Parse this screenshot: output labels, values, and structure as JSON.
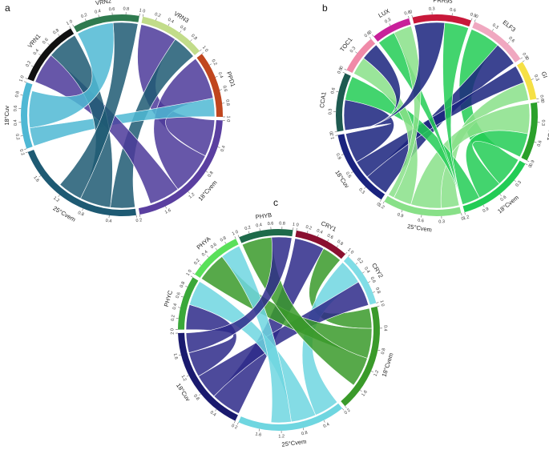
{
  "chart_data": [
    {
      "type": "chord",
      "panel": "a",
      "segments": [
        {
          "name": "VRN3",
          "color": "#c2dc8a",
          "ticks": [
            "0",
            "0.2",
            "0.4",
            "0.6",
            "0.8",
            "1"
          ]
        },
        {
          "name": "PPD1",
          "color": "#c0461e",
          "ticks": [
            "0",
            "0.2",
            "0.4",
            "0.6",
            "0.8",
            "1"
          ]
        },
        {
          "name": "18°Cvem",
          "color": "#5a3fa0",
          "ticks": [
            "0",
            "0.4",
            "0.8",
            "1.2",
            "1.6",
            "2"
          ]
        },
        {
          "name": "25°Cvem",
          "color": "#1e5a73",
          "ticks": [
            "0",
            "0.4",
            "0.8",
            "1.2",
            "1.6",
            "2"
          ]
        },
        {
          "name": "18°Cuv",
          "color": "#4fb8d4",
          "ticks": [
            "0",
            "0.2",
            "0.4",
            "0.6",
            "0.8",
            "1"
          ]
        },
        {
          "name": "VRN1",
          "color": "#111111",
          "ticks": [
            "0",
            "0.2",
            "0.4",
            "0.6",
            "0.8",
            "1"
          ]
        },
        {
          "name": "VRN2",
          "color": "#2f7a4f",
          "ticks": [
            "0",
            "0.2",
            "0.4",
            "0.6",
            "0.8",
            "1"
          ]
        }
      ],
      "links": [
        {
          "from": "VRN3",
          "to": "18°Cvem",
          "value": 0.6,
          "color": "#4c3a9a"
        },
        {
          "from": "VRN3",
          "to": "25°Cvem",
          "value": 0.4,
          "color": "#1e5a73"
        },
        {
          "from": "PPD1",
          "to": "18°Cvem",
          "value": 0.7,
          "color": "#4c3a9a"
        },
        {
          "from": "PPD1",
          "to": "18°Cuv",
          "value": 0.3,
          "color": "#4fb8d4"
        },
        {
          "from": "VRN1",
          "to": "18°Cvem",
          "value": 0.5,
          "color": "#4c3a9a"
        },
        {
          "from": "VRN1",
          "to": "25°Cvem",
          "value": 0.5,
          "color": "#1e5a73"
        },
        {
          "from": "VRN2",
          "to": "18°Cuv",
          "value": 0.6,
          "color": "#4fb8d4"
        },
        {
          "from": "VRN2",
          "to": "25°Cvem",
          "value": 0.4,
          "color": "#1e5a73"
        }
      ]
    },
    {
      "type": "chord",
      "panel": "b",
      "segments": [
        {
          "name": "ELF3",
          "color": "#f0a8c0",
          "ticks": [
            "0",
            "0.3",
            "0.6",
            "0.9"
          ]
        },
        {
          "name": "GI",
          "color": "#f5e046",
          "ticks": [
            "0",
            "0.3",
            "0.6"
          ]
        },
        {
          "name": "CO1",
          "color": "#2aa02a",
          "ticks": [
            "0",
            "0.3",
            "0.6",
            "0.9"
          ]
        },
        {
          "name": "18°Cvem",
          "color": "#22cc55",
          "ticks": [
            "0",
            "0.3",
            "0.6",
            "0.9",
            "1.2"
          ]
        },
        {
          "name": "25°Cvem",
          "color": "#88e088",
          "ticks": [
            "0",
            "0.3",
            "0.6",
            "0.9",
            "1.2"
          ]
        },
        {
          "name": "18°Cuv",
          "color": "#1a237e",
          "ticks": [
            "0",
            "0.3",
            "0.6",
            "0.9",
            "1.2"
          ]
        },
        {
          "name": "CCA1",
          "color": "#1e5a50",
          "ticks": [
            "0",
            "0.3",
            "0.6",
            "0.9"
          ]
        },
        {
          "name": "TOC1",
          "color": "#f08aa8",
          "ticks": [
            "0",
            "0.3",
            "0.6"
          ]
        },
        {
          "name": "LUX",
          "color": "#c8209a",
          "ticks": [
            "0",
            "0.3",
            "0.6"
          ]
        },
        {
          "name": "PRR95",
          "color": "#c8183a",
          "ticks": [
            "0",
            "0.3",
            "0.6",
            "0.9"
          ]
        }
      ],
      "links": [
        {
          "from": "ELF3",
          "to": "18°Cvem",
          "value": 0.5,
          "color": "#22cc55"
        },
        {
          "from": "ELF3",
          "to": "18°Cuv",
          "value": 0.4,
          "color": "#1a237e"
        },
        {
          "from": "GI",
          "to": "18°Cuv",
          "value": 0.3,
          "color": "#1a237e"
        },
        {
          "from": "GI",
          "to": "25°Cvem",
          "value": 0.3,
          "color": "#88e088"
        },
        {
          "from": "CO1",
          "to": "25°Cvem",
          "value": 0.5,
          "color": "#88e088"
        },
        {
          "from": "CO1",
          "to": "18°Cvem",
          "value": 0.4,
          "color": "#22cc55"
        },
        {
          "from": "CCA1",
          "to": "18°Cuv",
          "value": 0.5,
          "color": "#1a237e"
        },
        {
          "from": "CCA1",
          "to": "18°Cvem",
          "value": 0.4,
          "color": "#22cc55"
        },
        {
          "from": "TOC1",
          "to": "25°Cvem",
          "value": 0.3,
          "color": "#88e088"
        },
        {
          "from": "TOC1",
          "to": "18°Cuv",
          "value": 0.3,
          "color": "#1a237e"
        },
        {
          "from": "LUX",
          "to": "18°Cvem",
          "value": 0.3,
          "color": "#22cc55"
        },
        {
          "from": "LUX",
          "to": "25°Cvem",
          "value": 0.3,
          "color": "#88e088"
        },
        {
          "from": "PRR95",
          "to": "18°Cuv",
          "value": 0.5,
          "color": "#1a237e"
        },
        {
          "from": "PRR95",
          "to": "18°Cvem",
          "value": 0.4,
          "color": "#22cc55"
        }
      ]
    },
    {
      "type": "chord",
      "panel": "c",
      "segments": [
        {
          "name": "CRY1",
          "color": "#8a1030",
          "ticks": [
            "0",
            "0.2",
            "0.4",
            "0.6",
            "0.8",
            "1"
          ]
        },
        {
          "name": "CRY2",
          "color": "#80dde6",
          "ticks": [
            "0",
            "0.2",
            "0.4",
            "0.6",
            "0.8",
            "1"
          ]
        },
        {
          "name": "18°Cvem",
          "color": "#3a9a2a",
          "ticks": [
            "0",
            "0.4",
            "0.8",
            "1.2",
            "1.6",
            "2"
          ]
        },
        {
          "name": "25°Cvem",
          "color": "#6fd6e0",
          "ticks": [
            "0",
            "0.4",
            "0.8",
            "1.2",
            "1.6",
            "2"
          ]
        },
        {
          "name": "18°Cuv",
          "color": "#1a1a6e",
          "ticks": [
            "0",
            "0.4",
            "0.8",
            "1.2",
            "1.6",
            "2"
          ]
        },
        {
          "name": "PHYC",
          "color": "#3aa83a",
          "ticks": [
            "0",
            "0.2",
            "0.4",
            "0.6",
            "0.8",
            "1"
          ]
        },
        {
          "name": "PHYA",
          "color": "#5ae05a",
          "ticks": [
            "0",
            "0.2",
            "0.4",
            "0.6",
            "0.8",
            "1"
          ]
        },
        {
          "name": "PHYB",
          "color": "#1e6a4a",
          "ticks": [
            "0",
            "0.2",
            "0.4",
            "0.6",
            "0.8",
            "1"
          ]
        }
      ],
      "links": [
        {
          "from": "CRY1",
          "to": "18°Cuv",
          "value": 0.6,
          "color": "#2e2a8a"
        },
        {
          "from": "CRY1",
          "to": "18°Cvem",
          "value": 0.4,
          "color": "#3a9a2a"
        },
        {
          "from": "CRY2",
          "to": "25°Cvem",
          "value": 0.5,
          "color": "#6fd6e0"
        },
        {
          "from": "CRY2",
          "to": "18°Cuv",
          "value": 0.5,
          "color": "#2e2a8a"
        },
        {
          "from": "PHYC",
          "to": "18°Cuv",
          "value": 0.5,
          "color": "#2e2a8a"
        },
        {
          "from": "PHYC",
          "to": "25°Cvem",
          "value": 0.5,
          "color": "#6fd6e0"
        },
        {
          "from": "PHYA",
          "to": "18°Cvem",
          "value": 0.6,
          "color": "#3a9a2a"
        },
        {
          "from": "PHYA",
          "to": "25°Cvem",
          "value": 0.4,
          "color": "#6fd6e0"
        },
        {
          "from": "PHYB",
          "to": "18°Cvem",
          "value": 0.6,
          "color": "#3a9a2a"
        },
        {
          "from": "PHYB",
          "to": "18°Cuv",
          "value": 0.4,
          "color": "#2e2a8a"
        }
      ]
    }
  ]
}
